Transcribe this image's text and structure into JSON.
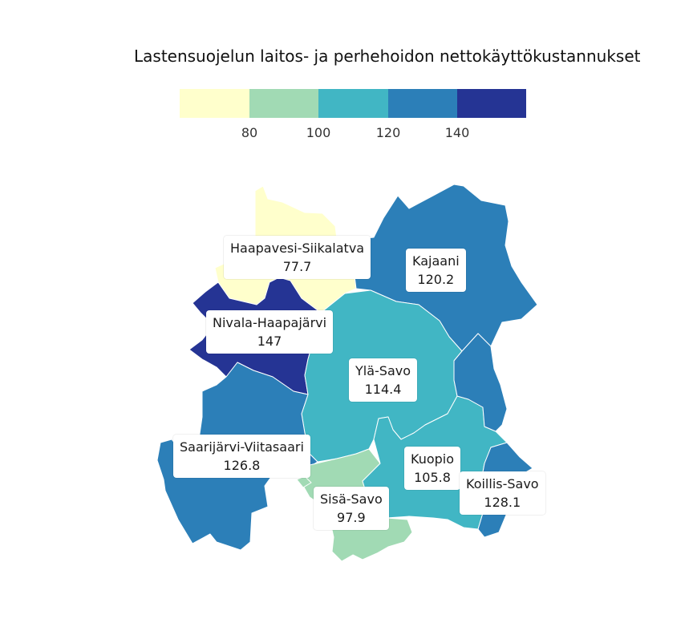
{
  "title": "Lastensuojelun laitos- ja perhehoidon nettokäyttökustannukset",
  "legend": {
    "colors": [
      "#ffffcc",
      "#a1dab4",
      "#41b6c4",
      "#2c7fb8",
      "#253494"
    ],
    "ticks": [
      "80",
      "100",
      "120",
      "140"
    ]
  },
  "regions": [
    {
      "name": "Haapavesi-Siikalatva",
      "value": "77.7",
      "color": "#ffffcc"
    },
    {
      "name": "Kajaani",
      "value": "120.2",
      "color": "#2c7fb8"
    },
    {
      "name": "Nivala-Haapajärvi",
      "value": "147",
      "color": "#253494"
    },
    {
      "name": "Ylä-Savo",
      "value": "114.4",
      "color": "#41b6c4"
    },
    {
      "name": "Saarijärvi-Viitasaari",
      "value": "126.8",
      "color": "#2c7fb8"
    },
    {
      "name": "Kuopio",
      "value": "105.8",
      "color": "#41b6c4"
    },
    {
      "name": "Koillis-Savo",
      "value": "128.1",
      "color": "#2c7fb8"
    },
    {
      "name": "Sisä-Savo",
      "value": "97.9",
      "color": "#a1dab4"
    }
  ]
}
